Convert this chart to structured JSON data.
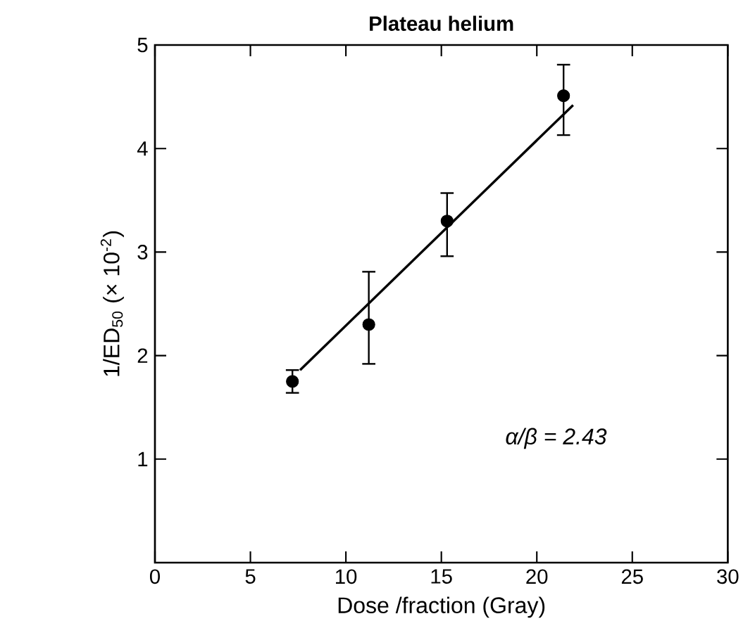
{
  "chart_data": {
    "type": "scatter",
    "title": "**Plateau helium**",
    "xlabel": "Dose /fraction (Gray)",
    "ylabel": "1/ED$_{50}$ (× 10$^{-2}$)",
    "xlim": [
      0,
      30
    ],
    "xticks": [
      0,
      5,
      10,
      15,
      20,
      25,
      30
    ],
    "ylim": [
      0,
      5
    ],
    "yticks": [
      1,
      2,
      3,
      4,
      5
    ],
    "grid": false,
    "marker": "circle",
    "series": [
      {
        "color": "#000000",
        "x": [
          7.2,
          11.2,
          15.3,
          21.4
        ],
        "values": [
          1.75,
          2.3,
          3.3,
          4.51
        ],
        "errors": [
          [
            1.64,
            1.86
          ],
          [
            1.92,
            2.81
          ],
          [
            2.96,
            3.57
          ],
          [
            4.13,
            4.81
          ]
        ]
      },
      {
        "type": "line",
        "color": "#000000",
        "marker": "none",
        "line_style": "solid",
        "x": [
          7.6,
          21.9
        ],
        "values": [
          1.86,
          4.42
        ]
      }
    ],
    "annotations": [
      "*α/β = 2.43*"
    ]
  }
}
